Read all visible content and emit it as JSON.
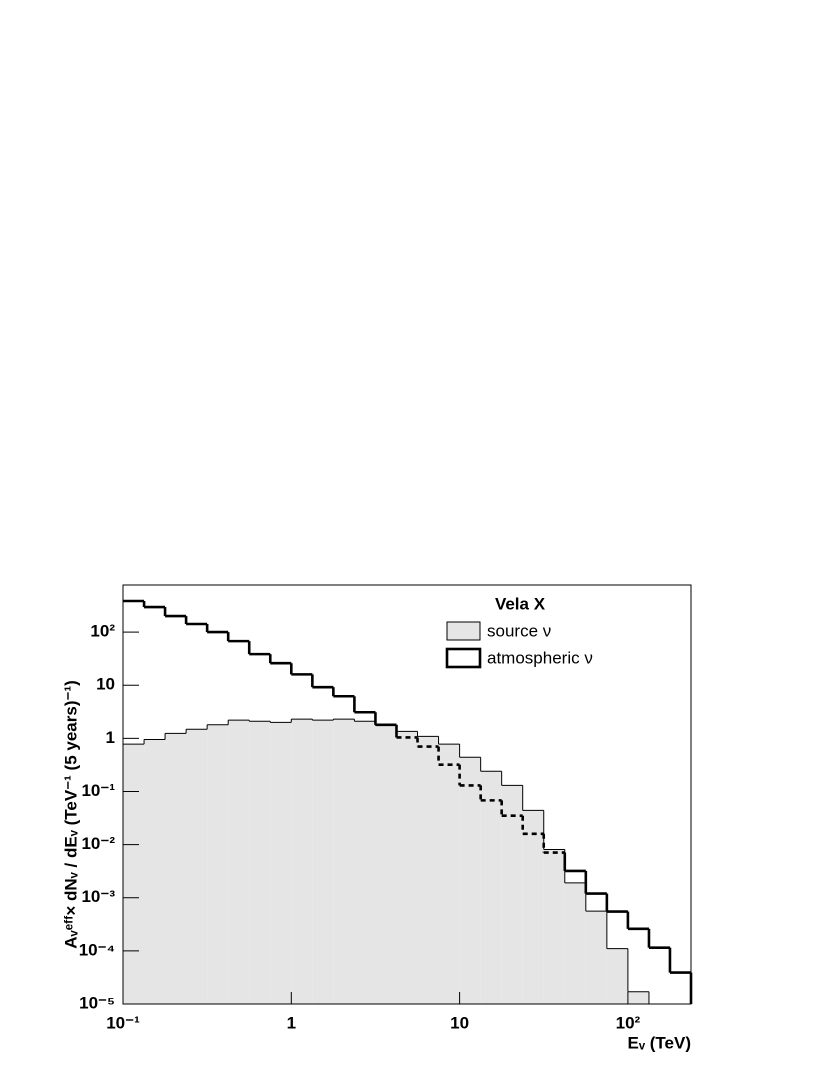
{
  "chart_data": {
    "type": "histogram",
    "legend_title": "Vela X",
    "x_label": "Eᵥ (TeV)",
    "y_label": "Aᵥᵉᶠᶠ× dNᵥ / dEᵥ (TeV⁻¹ (5 years)⁻¹)",
    "log_x": true,
    "log_y": true,
    "legend": "upper right",
    "bins": [
      0.1,
      0.1334,
      0.1778,
      0.2371,
      0.3162,
      0.4217,
      0.5623,
      0.7499,
      1,
      1.334,
      1.778,
      2.371,
      3.162,
      4.217,
      5.623,
      7.499,
      10,
      13.34,
      17.78,
      23.71,
      31.62,
      42.17,
      56.23,
      74.99,
      100,
      133.4,
      177.8,
      237.1
    ],
    "series": [
      {
        "name": "source ν",
        "color": "#e5e5e5",
        "values": [
          0.78,
          0.95,
          1.24,
          1.48,
          1.8,
          2.2,
          2.1,
          2.0,
          2.3,
          2.2,
          2.3,
          2.1,
          1.76,
          1.35,
          1.09,
          0.78,
          0.44,
          0.24,
          0.13,
          0.044,
          0.0081,
          0.0019,
          0.00056,
          0.00011,
          1.7e-05,
          null,
          null
        ]
      },
      {
        "name": "atmospheric ν",
        "color": "#000000",
        "values": [
          385,
          296,
          200,
          142,
          100,
          67.6,
          38.5,
          26,
          16,
          9.2,
          6.2,
          3.1,
          1.8,
          1.04,
          0.7,
          0.32,
          0.13,
          0.068,
          0.035,
          0.016,
          0.0071,
          0.0032,
          0.0012,
          0.00055,
          0.00026,
          0.000115,
          3.9e-05
        ]
      }
    ],
    "xlim": [
      0.1,
      237.1
    ],
    "ylim": [
      1e-05,
      770
    ],
    "xticks": [
      {
        "value": 0.1,
        "label": "10⁻¹"
      },
      1,
      10,
      {
        "value": 100,
        "label": "10²"
      }
    ],
    "yticks": [
      {
        "value": 1e-05,
        "label": "10⁻⁵"
      },
      {
        "value": 0.0001,
        "label": "10⁻⁴"
      },
      {
        "value": 0.001,
        "label": "10⁻³"
      },
      {
        "value": 0.01,
        "label": "10⁻²"
      },
      {
        "value": 0.1,
        "label": "10⁻¹"
      },
      1,
      10,
      {
        "value": 100,
        "label": "10²"
      }
    ]
  }
}
